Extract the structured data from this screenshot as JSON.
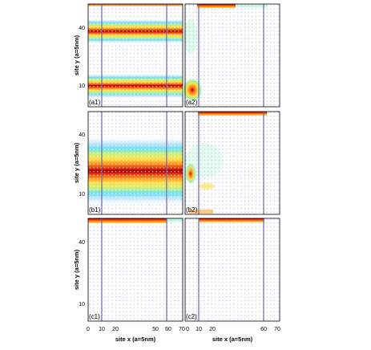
{
  "figure": {
    "y_axis_label": "site y (a=5nm)",
    "x_axis_label": "site x (a=5nm)",
    "x_ticks_left": [
      "0",
      "10",
      "20",
      "50",
      "60",
      "70"
    ],
    "x_ticks_right": [
      "0",
      "10",
      "20",
      "60",
      "70"
    ],
    "y_ticks": [
      "40",
      "10"
    ],
    "panel_labels": [
      "(a1)",
      "(a2)",
      "(b1)",
      "(b2)",
      "(c1)",
      "(c2)"
    ]
  },
  "chart_data": [
    {
      "type": "heatmap",
      "panel": "(a1)",
      "xlim": [
        0,
        70
      ],
      "ylim": [
        0,
        46
      ],
      "features": [
        {
          "kind": "horizontal-band",
          "y_center": 36,
          "y_halfwidth": 5
        },
        {
          "kind": "horizontal-band",
          "y_center": 10,
          "y_halfwidth": 5
        }
      ],
      "vertical_lines_x": [
        10,
        60
      ]
    },
    {
      "type": "heatmap",
      "panel": "(a2)",
      "xlim": [
        0,
        70
      ],
      "ylim": [
        0,
        46
      ],
      "features": [
        {
          "kind": "top-edge-arrows",
          "x_range": [
            10,
            40
          ]
        },
        {
          "kind": "corner-blob",
          "x": 2,
          "y": 10
        }
      ],
      "vertical_lines_x": [
        10,
        60
      ]
    },
    {
      "type": "heatmap",
      "panel": "(b1)",
      "xlim": [
        0,
        70
      ],
      "ylim": [
        0,
        46
      ],
      "features": [
        {
          "kind": "horizontal-band",
          "y_center": 22,
          "y_halfwidth": 9
        }
      ],
      "vertical_lines_x": [
        10,
        60
      ]
    },
    {
      "type": "heatmap",
      "panel": "(b2)",
      "xlim": [
        0,
        70
      ],
      "ylim": [
        0,
        46
      ],
      "features": [
        {
          "kind": "top-edge-arrows",
          "x_range": [
            10,
            60
          ]
        },
        {
          "kind": "edge-blob",
          "x": 2,
          "y": 22
        }
      ],
      "vertical_lines_x": [
        10,
        60
      ]
    },
    {
      "type": "heatmap",
      "panel": "(c1)",
      "xlim": [
        0,
        70
      ],
      "ylim": [
        0,
        46
      ],
      "features": [
        {
          "kind": "top-edge-arrows",
          "x_range": [
            0,
            60
          ]
        }
      ],
      "vertical_lines_x": [
        10,
        60
      ]
    },
    {
      "type": "heatmap",
      "panel": "(c2)",
      "xlim": [
        0,
        70
      ],
      "ylim": [
        0,
        46
      ],
      "features": [
        {
          "kind": "top-edge-arrows",
          "x_range": [
            10,
            60
          ]
        }
      ],
      "vertical_lines_x": [
        10,
        60
      ]
    }
  ]
}
